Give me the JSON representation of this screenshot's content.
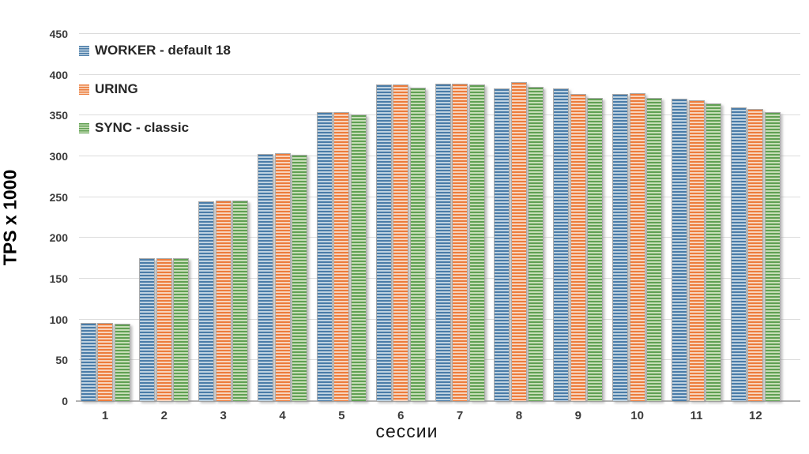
{
  "chart_data": {
    "type": "bar",
    "title": "",
    "xlabel": "сессии",
    "ylabel": "TPS x 1000",
    "ylim": [
      0,
      450
    ],
    "yticks": [
      0,
      50,
      100,
      150,
      200,
      250,
      300,
      350,
      400,
      450
    ],
    "grid": true,
    "legend_position": "top-left-inside",
    "categories": [
      "1",
      "2",
      "3",
      "4",
      "5",
      "6",
      "7",
      "8",
      "9",
      "10",
      "11",
      "12"
    ],
    "series": [
      {
        "name": "WORKER - default 18",
        "color": "#4a7ca8",
        "color_light": "#bdd1e0",
        "values": [
          96,
          175,
          245,
          303,
          354,
          388,
          389,
          383,
          383,
          376,
          371,
          360
        ]
      },
      {
        "name": "URING",
        "color": "#ec7c3c",
        "color_light": "#f8d3bc",
        "values": [
          96,
          175,
          246,
          304,
          354,
          388,
          389,
          391,
          376,
          377,
          369,
          358
        ]
      },
      {
        "name": "SYNC - classic",
        "color": "#60a053",
        "color_light": "#c6ddb6",
        "values": [
          95,
          175,
          246,
          302,
          351,
          384,
          388,
          385,
          372,
          372,
          365,
          354
        ]
      }
    ],
    "colors": {
      "grid": "#dcdcdc",
      "baseline": "#b3b3b3",
      "bar_edge": "#ababab",
      "tick_text": "#3b3b3b"
    }
  }
}
